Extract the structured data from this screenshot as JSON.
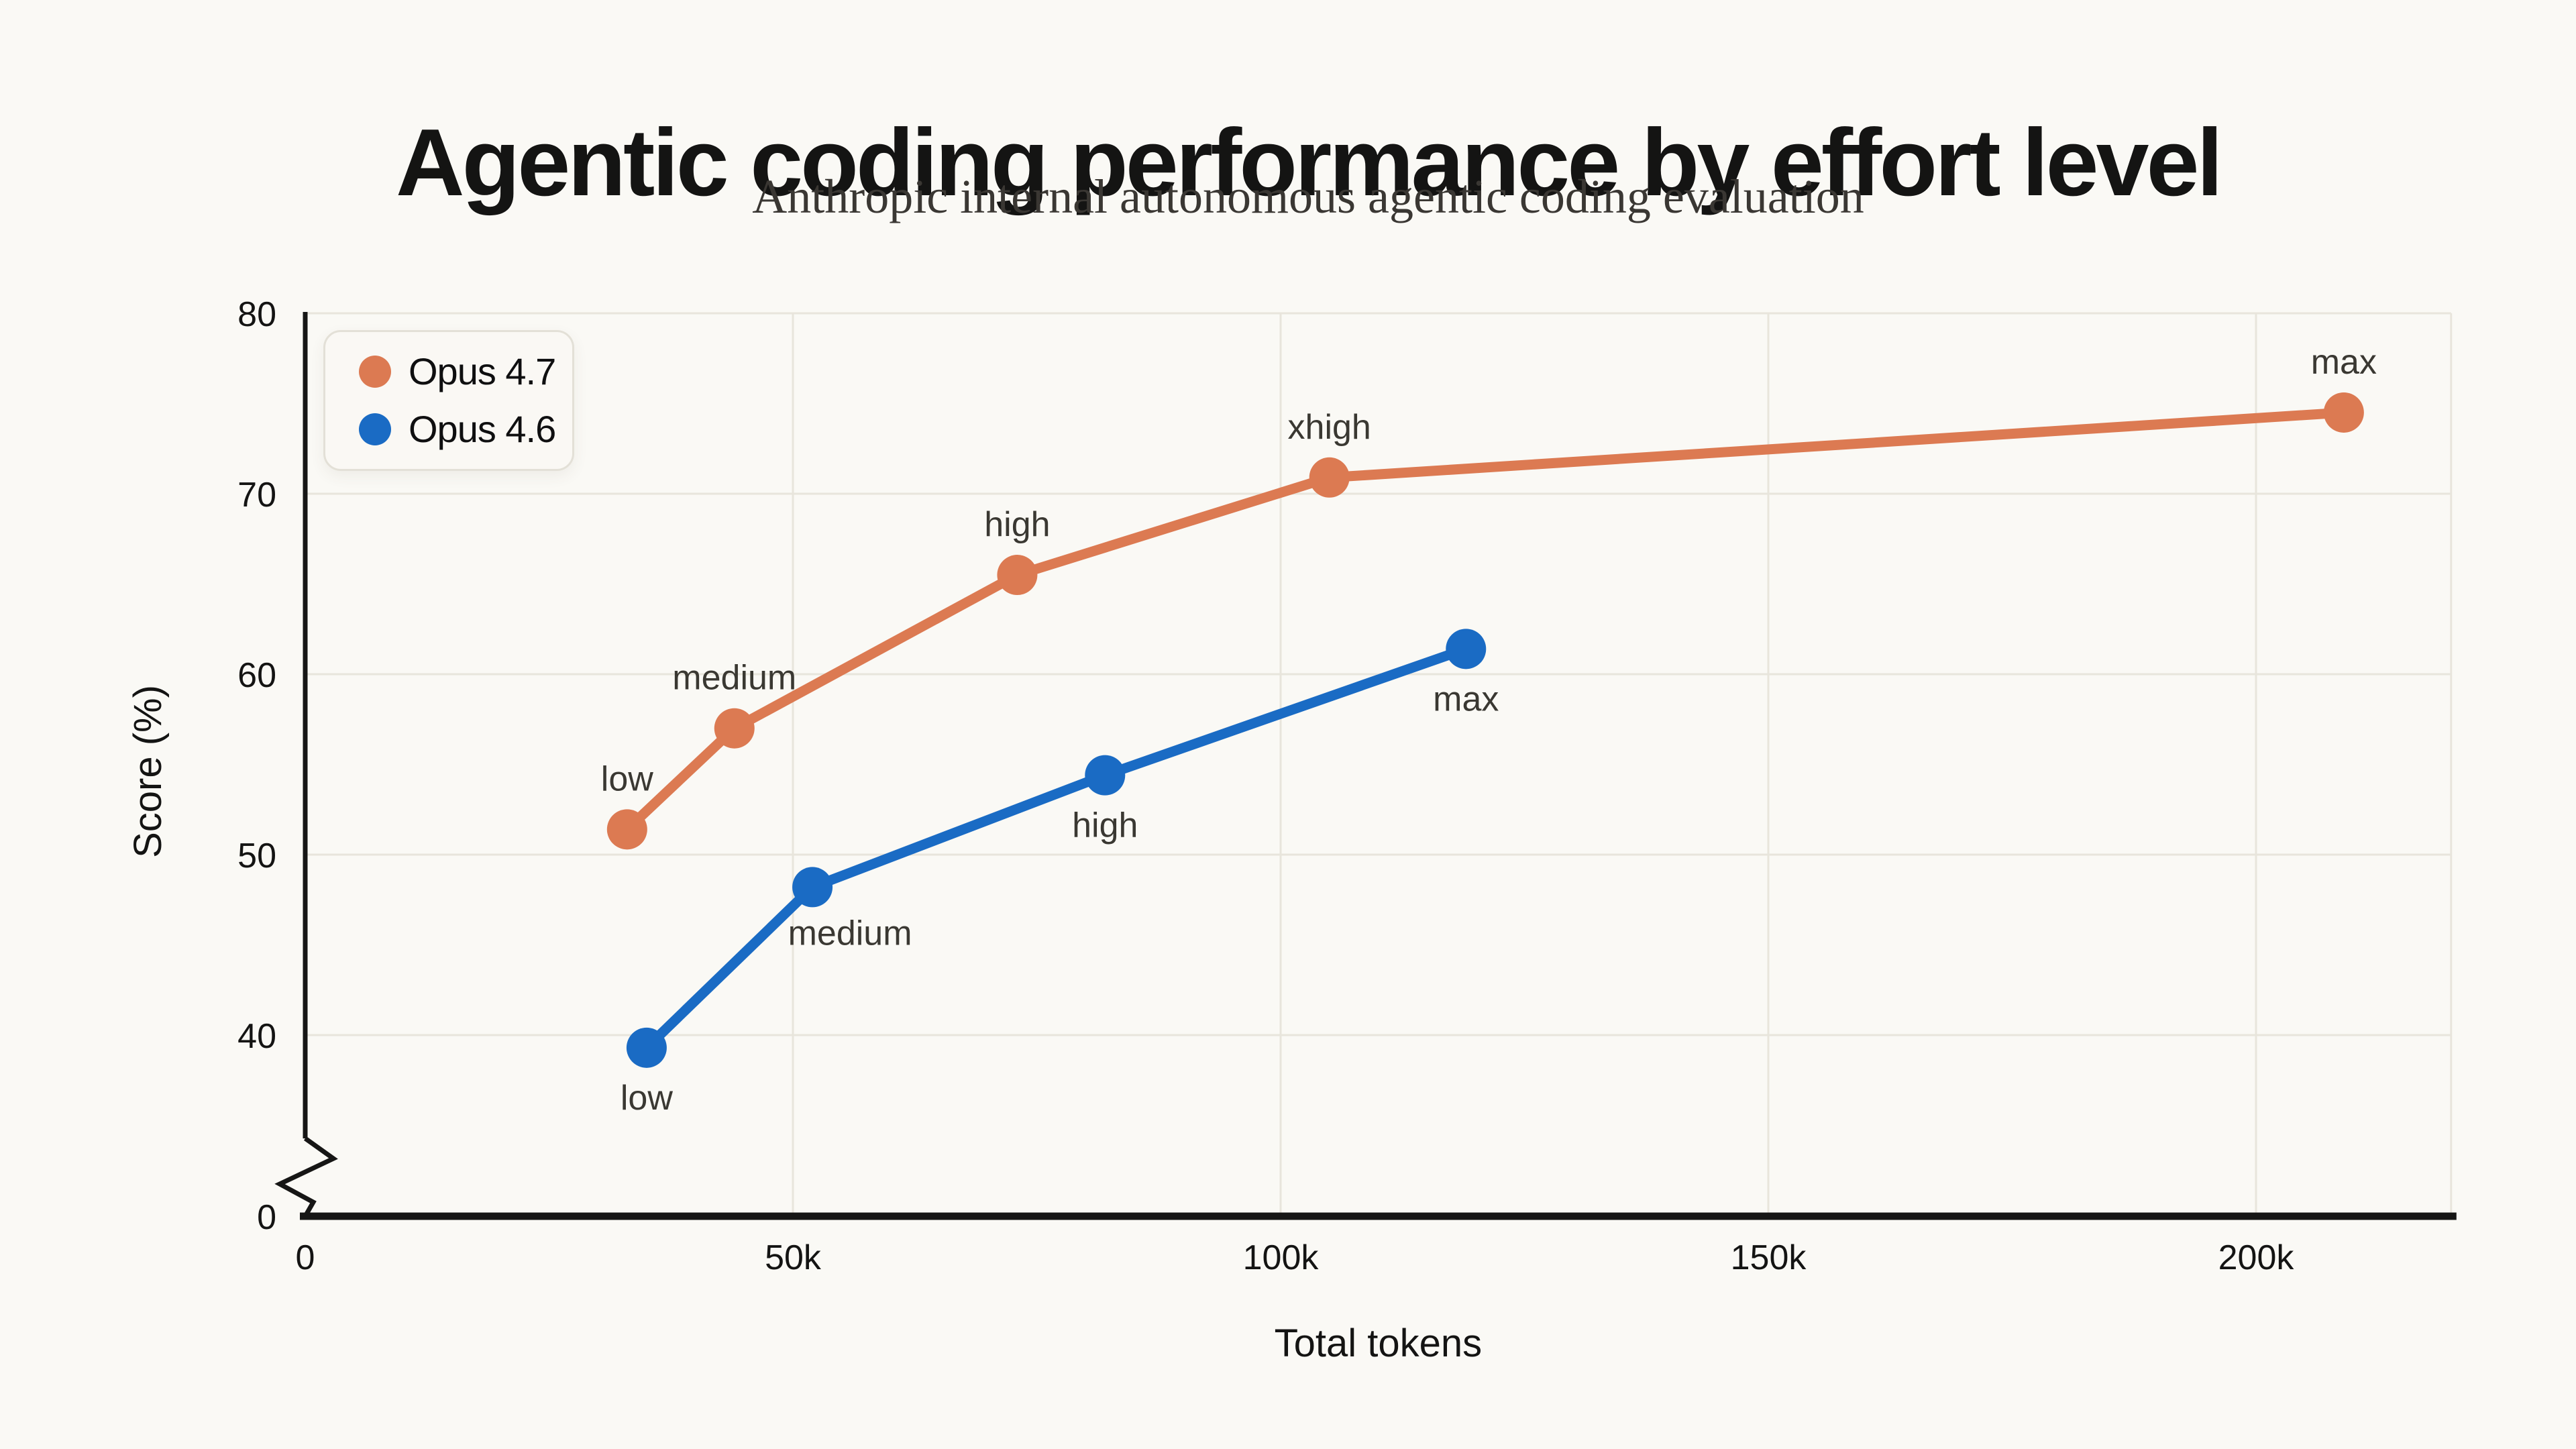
{
  "header": {
    "title": "Agentic coding performance by effort level",
    "subtitle": "Anthropic internal autonomous agentic coding evaluation"
  },
  "legend": {
    "position": "top-left",
    "items": [
      {
        "label": "Opus 4.7",
        "color": "#DC7A52"
      },
      {
        "label": "Opus 4.6",
        "color": "#1A6BC4"
      }
    ]
  },
  "colors": {
    "background": "#FAF9F5",
    "gridline": "#E8E5DC",
    "axis": "#161615",
    "tick_text": "#141413",
    "point_label_text": "#3a3832",
    "opus_47_orange": "#DC7A52",
    "opus_46_blue": "#1A6BC4"
  },
  "chart_data": {
    "type": "line",
    "title": "Agentic coding performance by effort level",
    "subtitle": "Anthropic internal autonomous agentic coding evaluation",
    "xlabel": "Total tokens",
    "ylabel": "Score (%)",
    "grid": true,
    "legend_position": "top-left",
    "xlim": [
      0,
      220000
    ],
    "ylim": [
      0,
      80
    ],
    "y_axis_break": {
      "enabled": true,
      "hidden_range": [
        0,
        35
      ]
    },
    "x_ticks": [
      {
        "value": 0,
        "label": "0"
      },
      {
        "value": 50000,
        "label": "50k"
      },
      {
        "value": 100000,
        "label": "100k"
      },
      {
        "value": 150000,
        "label": "150k"
      },
      {
        "value": 200000,
        "label": "200k"
      }
    ],
    "y_ticks": [
      {
        "value": 0,
        "label": "0"
      },
      {
        "value": 40,
        "label": "40"
      },
      {
        "value": 50,
        "label": "50"
      },
      {
        "value": 60,
        "label": "60"
      },
      {
        "value": 70,
        "label": "70"
      },
      {
        "value": 80,
        "label": "80"
      }
    ],
    "series": [
      {
        "name": "Opus 4.7",
        "color": "#DC7A52",
        "points": [
          {
            "effort": "low",
            "tokens": 33000,
            "score": 51.4,
            "label_pos": "above"
          },
          {
            "effort": "medium",
            "tokens": 44000,
            "score": 57.0,
            "label_pos": "above"
          },
          {
            "effort": "high",
            "tokens": 73000,
            "score": 65.5,
            "label_pos": "above"
          },
          {
            "effort": "xhigh",
            "tokens": 105000,
            "score": 70.9,
            "label_pos": "above"
          },
          {
            "effort": "max",
            "tokens": 209000,
            "score": 74.5,
            "label_pos": "above"
          }
        ]
      },
      {
        "name": "Opus 4.6",
        "color": "#1A6BC4",
        "points": [
          {
            "effort": "low",
            "tokens": 35000,
            "score": 39.3,
            "label_pos": "below"
          },
          {
            "effort": "medium",
            "tokens": 52000,
            "score": 48.2,
            "label_pos": "below-right"
          },
          {
            "effort": "high",
            "tokens": 82000,
            "score": 54.4,
            "label_pos": "below"
          },
          {
            "effort": "max",
            "tokens": 119000,
            "score": 61.4,
            "label_pos": "below"
          }
        ]
      }
    ]
  }
}
